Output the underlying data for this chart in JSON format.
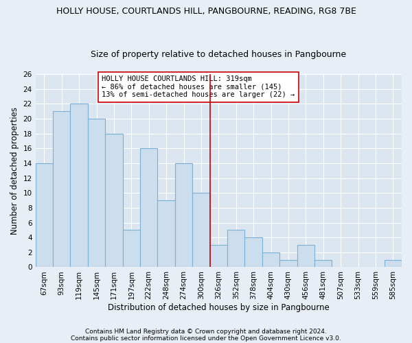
{
  "title1": "HOLLY HOUSE, COURTLANDS HILL, PANGBOURNE, READING, RG8 7BE",
  "title2": "Size of property relative to detached houses in Pangbourne",
  "xlabel": "Distribution of detached houses by size in Pangbourne",
  "ylabel": "Number of detached properties",
  "categories": [
    "67sqm",
    "93sqm",
    "119sqm",
    "145sqm",
    "171sqm",
    "197sqm",
    "222sqm",
    "248sqm",
    "274sqm",
    "300sqm",
    "326sqm",
    "352sqm",
    "378sqm",
    "404sqm",
    "430sqm",
    "456sqm",
    "481sqm",
    "507sqm",
    "533sqm",
    "559sqm",
    "585sqm"
  ],
  "values": [
    14,
    21,
    22,
    20,
    18,
    5,
    16,
    9,
    14,
    10,
    3,
    5,
    4,
    2,
    1,
    3,
    1,
    0,
    0,
    0,
    1
  ],
  "bar_color": "#ccdded",
  "bar_edge_color": "#7bafd4",
  "vline_x": 9.5,
  "vline_color": "#cc0000",
  "annotation_text": "HOLLY HOUSE COURTLANDS HILL: 319sqm\n← 86% of detached houses are smaller (145)\n13% of semi-detached houses are larger (22) →",
  "annotation_box_color": "#ffffff",
  "annotation_box_edge": "#cc0000",
  "ylim": [
    0,
    26
  ],
  "yticks": [
    0,
    2,
    4,
    6,
    8,
    10,
    12,
    14,
    16,
    18,
    20,
    22,
    24,
    26
  ],
  "footer1": "Contains HM Land Registry data © Crown copyright and database right 2024.",
  "footer2": "Contains public sector information licensed under the Open Government Licence v3.0.",
  "bg_color": "#e8eef5",
  "plot_bg_color": "#dce6f0",
  "grid_color": "#ffffff",
  "title1_fontsize": 9,
  "title2_fontsize": 9,
  "tick_fontsize": 7.5,
  "axis_label_fontsize": 8.5,
  "annotation_fontsize": 7.5,
  "footer_fontsize": 6.5
}
